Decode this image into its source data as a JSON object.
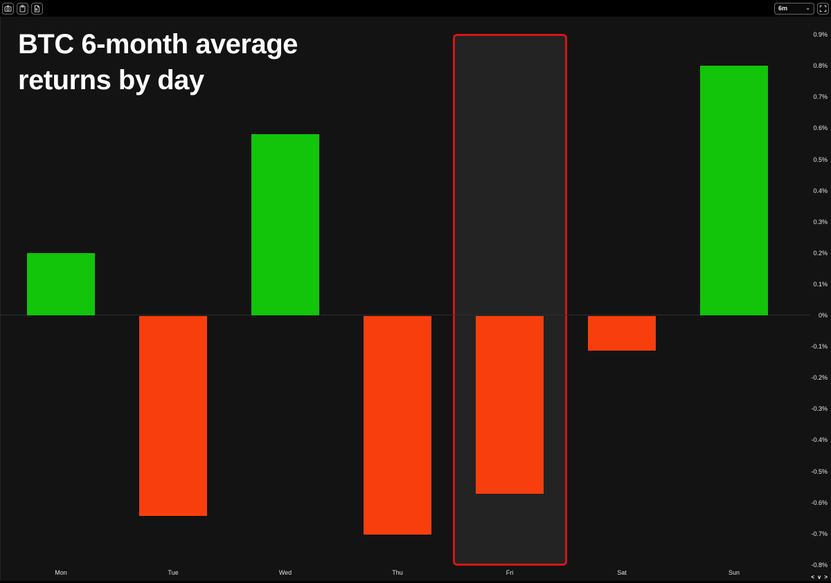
{
  "toolbar": {
    "left_buttons": [
      {
        "name": "screenshot-button",
        "icon": "camera-icon"
      },
      {
        "name": "copy-button",
        "icon": "clipboard-icon"
      },
      {
        "name": "export-button",
        "icon": "document-icon"
      }
    ],
    "timeframe": {
      "value": "6m"
    },
    "fullscreen": {
      "icon": "expand-icon"
    }
  },
  "chart_data": {
    "type": "bar",
    "title": "BTC 6-month average returns by day",
    "categories": [
      "Mon",
      "Tue",
      "Wed",
      "Thu",
      "Fri",
      "Sat",
      "Sun"
    ],
    "values": [
      0.2,
      -0.64,
      0.58,
      -0.7,
      -0.57,
      -0.11,
      0.8
    ],
    "unit": "%",
    "xlabel": "",
    "ylabel": "",
    "ylim": [
      -0.8,
      0.9
    ],
    "ytick_step": 0.1,
    "ytick_labels": [
      "0.9%",
      "0.8%",
      "0.7%",
      "0.6%",
      "0.5%",
      "0.4%",
      "0.3%",
      "0.2%",
      "0.1%",
      "0%",
      "-0.1%",
      "-0.2%",
      "-0.3%",
      "-0.4%",
      "-0.5%",
      "-0.6%",
      "-0.7%",
      "-0.8%"
    ],
    "grid": "zero-line-only",
    "legend": "none",
    "positive_color": "#12c40a",
    "negative_color": "#f93e0e",
    "highlight": {
      "category": "Fri",
      "border_color": "#d91414",
      "fill_color": "#232323"
    }
  },
  "pager": {
    "prev": "<",
    "down": "v",
    "next": ">"
  }
}
